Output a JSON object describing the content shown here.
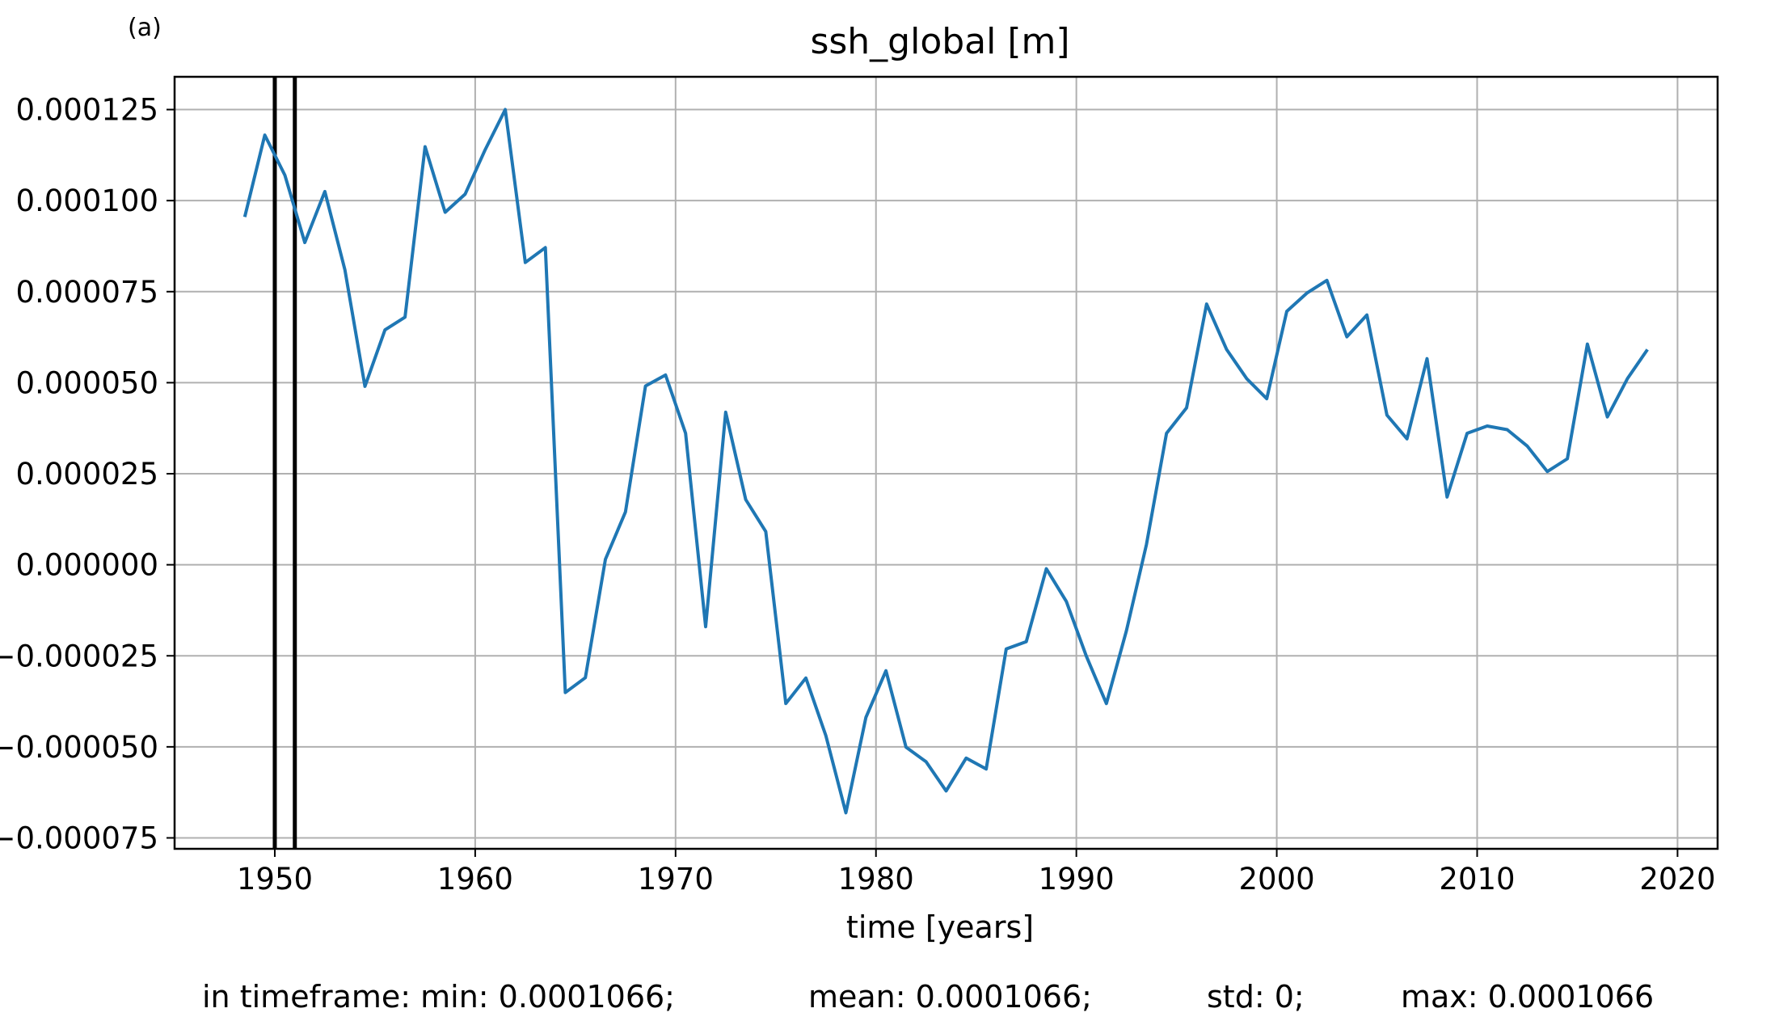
{
  "panel_label": "(a)",
  "footer": {
    "min_text": "in timeframe: min: 0.0001066;",
    "mean_text": "mean: 0.0001066;",
    "std_text": "std: 0;",
    "max_text": "max: 0.0001066"
  },
  "chart_data": {
    "type": "line",
    "title": "ssh_global [m]",
    "xlabel": "time [years]",
    "ylabel": "",
    "xlim": [
      1945,
      2022
    ],
    "ylim": [
      -7.8e-05,
      0.000134
    ],
    "grid": true,
    "line_color": "#1f77b4",
    "xticks": [
      1950,
      1960,
      1970,
      1980,
      1990,
      2000,
      2010,
      2020
    ],
    "xtick_labels": [
      "1950",
      "1960",
      "1970",
      "1980",
      "1990",
      "2000",
      "2010",
      "2020"
    ],
    "yticks": [
      0.000125,
      0.0001,
      7.5e-05,
      5e-05,
      2.5e-05,
      0,
      -2.5e-05,
      -5e-05,
      -7.5e-05
    ],
    "ytick_labels": [
      "0.000125",
      "0.000100",
      "0.000075",
      "0.000050",
      "0.000025",
      "0.000000",
      "−0.000025",
      "−0.000050",
      "−0.000075"
    ],
    "vlines": [
      1950.0,
      1951.0
    ],
    "x": [
      1948.5,
      1949.5,
      1950.5,
      1951.5,
      1952.5,
      1953.5,
      1954.5,
      1955.5,
      1956.5,
      1957.5,
      1958.5,
      1959.5,
      1960.5,
      1961.5,
      1962.5,
      1963.5,
      1964.5,
      1965.5,
      1966.5,
      1967.5,
      1968.5,
      1969.5,
      1970.5,
      1971.5,
      1972.5,
      1973.5,
      1974.5,
      1975.5,
      1976.5,
      1977.5,
      1978.5,
      1979.5,
      1980.5,
      1981.5,
      1982.5,
      1983.5,
      1984.5,
      1985.5,
      1986.5,
      1987.5,
      1988.5,
      1989.5,
      1990.5,
      1991.5,
      1992.5,
      1993.5,
      1994.5,
      1995.5,
      1996.5,
      1997.5,
      1998.5,
      1999.5,
      2000.5,
      2001.5,
      2002.5,
      2003.5,
      2004.5,
      2005.5,
      2006.5,
      2007.5,
      2008.5,
      2009.5,
      2010.5,
      2011.5,
      2012.5,
      2013.5,
      2014.5,
      2015.5,
      2016.5,
      2017.5,
      2018.5
    ],
    "values": [
      9.55e-05,
      0.000118,
      0.000107,
      8.85e-05,
      0.0001025,
      8.1e-05,
      4.9e-05,
      6.45e-05,
      6.8e-05,
      0.0001148,
      9.68e-05,
      0.0001018,
      0.000114,
      0.000125,
      8.3e-05,
      8.71e-05,
      -3.51e-05,
      -3.1e-05,
      1.5e-06,
      1.45e-05,
      4.91e-05,
      5.21e-05,
      3.61e-05,
      -1.7e-05,
      4.19e-05,
      1.79e-05,
      9.1e-06,
      -3.81e-05,
      -3.11e-05,
      -4.69e-05,
      -6.81e-05,
      -4.19e-05,
      -2.91e-05,
      -5.01e-05,
      -5.41e-05,
      -6.21e-05,
      -5.31e-05,
      -5.61e-05,
      -2.31e-05,
      -2.11e-05,
      -1.1e-06,
      -1.01e-05,
      -2.51e-05,
      -3.81e-05,
      -1.81e-05,
      5.6e-06,
      3.61e-05,
      4.31e-05,
      7.16e-05,
      5.91e-05,
      5.11e-05,
      4.56e-05,
      6.96e-05,
      7.46e-05,
      7.81e-05,
      6.26e-05,
      6.86e-05,
      4.11e-05,
      3.46e-05,
      5.66e-05,
      1.86e-05,
      3.61e-05,
      3.81e-05,
      3.71e-05,
      3.26e-05,
      2.56e-05,
      2.91e-05,
      6.06e-05,
      4.06e-05,
      5.11e-05,
      5.91e-05
    ]
  }
}
